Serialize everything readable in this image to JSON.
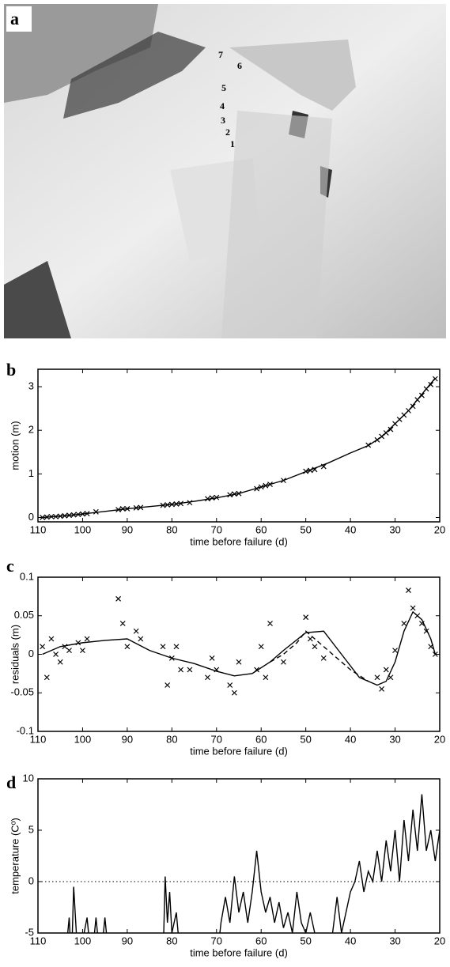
{
  "panels": [
    "a",
    "b",
    "c",
    "d"
  ],
  "photo": {
    "labels": [
      "7",
      "6",
      "5",
      "4",
      "3",
      "2",
      "1"
    ]
  },
  "chart_data": [
    {
      "type": "line",
      "xlabel": "time before failure (d)",
      "ylabel": "motion (m)",
      "xlim": [
        110,
        20
      ],
      "xticks": [
        110,
        100,
        90,
        80,
        70,
        60,
        50,
        40,
        30,
        20
      ],
      "ylim": [
        -0.1,
        3.4
      ],
      "yticks": [
        0,
        1,
        2,
        3
      ],
      "series": [
        {
          "mode": "markers",
          "color": "#000000",
          "x": [
            109,
            108,
            107,
            106,
            105,
            104,
            103,
            102,
            101,
            100,
            99,
            97,
            92,
            91,
            90,
            88,
            87,
            82,
            81,
            80,
            79,
            78,
            76,
            72,
            71,
            70,
            67,
            66,
            65,
            61,
            60,
            59,
            58,
            55,
            50,
            49,
            48,
            46,
            36,
            34,
            33,
            32,
            31,
            30,
            29,
            28,
            27,
            26,
            25,
            24,
            23,
            22,
            21
          ],
          "values": [
            0,
            0.01,
            0.02,
            0.02,
            0.03,
            0.04,
            0.05,
            0.06,
            0.07,
            0.08,
            0.09,
            0.13,
            0.18,
            0.2,
            0.2,
            0.22,
            0.23,
            0.28,
            0.29,
            0.3,
            0.31,
            0.32,
            0.34,
            0.43,
            0.45,
            0.46,
            0.52,
            0.54,
            0.55,
            0.66,
            0.7,
            0.73,
            0.76,
            0.85,
            1.06,
            1.08,
            1.1,
            1.17,
            1.66,
            1.78,
            1.86,
            1.94,
            2.02,
            2.15,
            2.25,
            2.35,
            2.45,
            2.55,
            2.7,
            2.8,
            2.95,
            3.05,
            3.18
          ]
        },
        {
          "mode": "lines",
          "color": "#000000",
          "x": [
            109,
            105,
            100,
            95,
            90,
            85,
            80,
            75,
            70,
            65,
            60,
            55,
            50,
            45,
            40,
            36,
            33,
            30,
            27,
            25,
            23,
            21
          ],
          "values": [
            0,
            0.03,
            0.08,
            0.14,
            0.2,
            0.25,
            0.3,
            0.37,
            0.45,
            0.55,
            0.7,
            0.85,
            1.05,
            1.25,
            1.48,
            1.65,
            1.85,
            2.15,
            2.45,
            2.7,
            2.95,
            3.2
          ]
        }
      ]
    },
    {
      "type": "line",
      "xlabel": "time before failure (d)",
      "ylabel": "residuals (m)",
      "xlim": [
        110,
        20
      ],
      "xticks": [
        110,
        100,
        90,
        80,
        70,
        60,
        50,
        40,
        30,
        20
      ],
      "ylim": [
        -0.1,
        0.1
      ],
      "yticks": [
        -0.1,
        -0.05,
        0,
        0.05,
        0.1
      ],
      "series": [
        {
          "mode": "markers",
          "color": "#000000",
          "x": [
            109,
            108,
            107,
            106,
            105,
            104,
            103,
            101,
            100,
            99,
            92,
            91,
            90,
            88,
            87,
            82,
            81,
            80,
            79,
            78,
            76,
            72,
            71,
            70,
            67,
            66,
            65,
            61,
            60,
            59,
            58,
            55,
            50,
            49,
            48,
            46,
            34,
            33,
            32,
            31,
            30,
            28,
            27,
            26,
            25,
            24,
            23,
            22,
            21
          ],
          "values": [
            0.01,
            -0.03,
            0.02,
            0.0,
            -0.01,
            0.01,
            0.005,
            0.015,
            0.005,
            0.02,
            0.072,
            0.04,
            0.01,
            0.03,
            0.02,
            0.01,
            -0.04,
            -0.005,
            0.01,
            -0.02,
            -0.02,
            -0.03,
            -0.005,
            -0.02,
            -0.04,
            -0.05,
            -0.01,
            -0.02,
            0.01,
            -0.03,
            0.04,
            -0.01,
            0.048,
            0.02,
            0.01,
            -0.005,
            -0.03,
            -0.045,
            -0.02,
            -0.03,
            0.005,
            0.04,
            0.083,
            0.06,
            0.05,
            0.04,
            0.03,
            0.01,
            0.0
          ]
        },
        {
          "mode": "lines",
          "color": "#000000",
          "x": [
            109,
            105,
            100,
            95,
            90,
            85,
            80,
            75,
            70,
            66,
            62,
            58,
            55,
            50,
            46,
            42,
            38,
            34,
            32,
            30,
            28,
            26,
            24,
            22,
            21
          ],
          "values": [
            0.0,
            0.01,
            0.015,
            0.018,
            0.02,
            0.005,
            -0.005,
            -0.012,
            -0.022,
            -0.028,
            -0.025,
            -0.01,
            0.005,
            0.028,
            0.03,
            0.0,
            -0.03,
            -0.04,
            -0.035,
            -0.01,
            0.03,
            0.055,
            0.045,
            0.02,
            0.0
          ]
        },
        {
          "mode": "lines",
          "dash": true,
          "color": "#000000",
          "x": [
            58,
            55,
            52,
            50,
            48,
            46,
            44,
            40,
            36
          ],
          "values": [
            -0.01,
            0.0,
            0.015,
            0.03,
            0.02,
            0.01,
            0.0,
            -0.02,
            -0.035
          ]
        }
      ]
    },
    {
      "type": "line",
      "xlabel": "time before failure (d)",
      "ylabel": "temperature (Cº)",
      "xlim": [
        110,
        20
      ],
      "xticks": [
        110,
        100,
        90,
        80,
        70,
        60,
        50,
        40,
        30,
        20
      ],
      "ylim": [
        -5,
        10
      ],
      "yticks": [
        -5,
        0,
        5,
        10
      ],
      "hline": 0,
      "series": [
        {
          "mode": "lines",
          "color": "#000000",
          "x": [
            104,
            103,
            102.5,
            102,
            101,
            99,
            98,
            97,
            96,
            95,
            94,
            82,
            81.5,
            81,
            80.5,
            80,
            79,
            78,
            70,
            69,
            68,
            67,
            66,
            65,
            64,
            63,
            62,
            61,
            60,
            59,
            58,
            57,
            56,
            55,
            54,
            53,
            52,
            51,
            50,
            49,
            48,
            47,
            46,
            45,
            44,
            43,
            42,
            41,
            40,
            39,
            38,
            37,
            36,
            35,
            34,
            33,
            32,
            31,
            30,
            29,
            28,
            27,
            26,
            25,
            24,
            23,
            22,
            21,
            20
          ],
          "values": [
            -8,
            -3.5,
            -8,
            -0.5,
            -8,
            -3.5,
            -8,
            -3.5,
            -8,
            -3.5,
            -8,
            -8,
            0.5,
            -4,
            -1,
            -5,
            -3,
            -8,
            -8,
            -4,
            -1.5,
            -4,
            0.5,
            -3,
            -1,
            -4,
            -1,
            3,
            -1,
            -3,
            -1.5,
            -4,
            -2,
            -4.5,
            -3,
            -5,
            -1,
            -4,
            -5,
            -3,
            -5,
            -8,
            -5,
            -8,
            -5,
            -1.5,
            -5,
            -3,
            -1,
            0,
            2,
            -1,
            1,
            0,
            3,
            0,
            4,
            1,
            5,
            0,
            6,
            2,
            7,
            3,
            8.5,
            3,
            5,
            2,
            5
          ]
        }
      ]
    }
  ]
}
